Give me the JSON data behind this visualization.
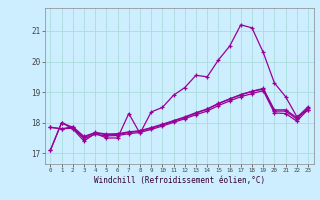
{
  "x": [
    0,
    1,
    2,
    3,
    4,
    5,
    6,
    7,
    8,
    9,
    10,
    11,
    12,
    13,
    14,
    15,
    16,
    17,
    18,
    19,
    20,
    21,
    22,
    23
  ],
  "line1": [
    17.1,
    18.0,
    17.8,
    17.4,
    17.65,
    17.5,
    17.5,
    18.3,
    17.65,
    18.35,
    18.5,
    18.9,
    19.15,
    19.55,
    19.5,
    20.05,
    20.5,
    21.2,
    21.1,
    20.3,
    19.3,
    18.85,
    18.2,
    18.4
  ],
  "line2": [
    17.85,
    17.8,
    17.82,
    17.48,
    17.62,
    17.57,
    17.58,
    17.64,
    17.68,
    17.78,
    17.89,
    18.01,
    18.13,
    18.26,
    18.38,
    18.56,
    18.71,
    18.85,
    18.95,
    19.05,
    18.32,
    18.3,
    18.05,
    18.43
  ],
  "line3": [
    17.85,
    17.8,
    17.87,
    17.55,
    17.68,
    17.63,
    17.64,
    17.7,
    17.74,
    17.84,
    17.95,
    18.07,
    18.19,
    18.33,
    18.45,
    18.63,
    18.78,
    18.92,
    19.03,
    19.12,
    18.42,
    18.42,
    18.17,
    18.52
  ],
  "line4": [
    17.1,
    18.0,
    17.85,
    17.52,
    17.67,
    17.61,
    17.62,
    17.68,
    17.72,
    17.82,
    17.93,
    18.05,
    18.17,
    18.31,
    18.44,
    18.62,
    18.77,
    18.91,
    19.02,
    19.1,
    18.38,
    18.38,
    18.12,
    18.48
  ],
  "line_color": "#990099",
  "bg_color": "#cceeff",
  "grid_color": "#aadddd",
  "xlabel": "Windchill (Refroidissement éolien,°C)",
  "yticks": [
    17,
    18,
    19,
    20,
    21
  ],
  "xlim": [
    -0.5,
    23.5
  ],
  "ylim": [
    16.65,
    21.75
  ]
}
